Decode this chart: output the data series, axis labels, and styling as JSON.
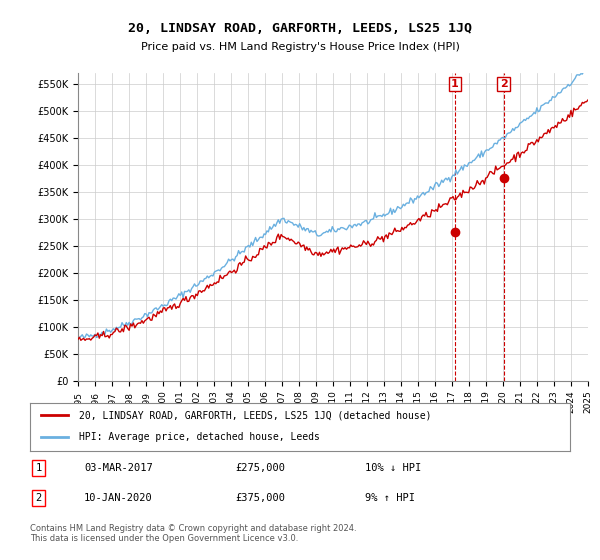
{
  "title": "20, LINDSAY ROAD, GARFORTH, LEEDS, LS25 1JQ",
  "subtitle": "Price paid vs. HM Land Registry's House Price Index (HPI)",
  "hpi_color": "#6ab0e0",
  "price_color": "#cc0000",
  "marker1_color": "#cc0000",
  "marker2_color": "#cc0000",
  "dashed_line_color": "#cc0000",
  "background_color": "#ffffff",
  "grid_color": "#cccccc",
  "ylim": [
    0,
    570000
  ],
  "yticks": [
    0,
    50000,
    100000,
    150000,
    200000,
    250000,
    300000,
    350000,
    400000,
    450000,
    500000,
    550000
  ],
  "ytick_labels": [
    "£0",
    "£50K",
    "£100K",
    "£150K",
    "£200K",
    "£250K",
    "£300K",
    "£350K",
    "£400K",
    "£450K",
    "£500K",
    "£550K"
  ],
  "legend_label_price": "20, LINDSAY ROAD, GARFORTH, LEEDS, LS25 1JQ (detached house)",
  "legend_label_hpi": "HPI: Average price, detached house, Leeds",
  "footer": "Contains HM Land Registry data © Crown copyright and database right 2024.\nThis data is licensed under the Open Government Licence v3.0.",
  "transaction1_date": "03-MAR-2017",
  "transaction1_price": "£275,000",
  "transaction1_rel": "10% ↓ HPI",
  "transaction2_date": "10-JAN-2020",
  "transaction2_price": "£375,000",
  "transaction2_rel": "9% ↑ HPI",
  "marker1_x": 2017.17,
  "marker1_y": 275000,
  "marker2_x": 2020.03,
  "marker2_y": 375000,
  "x_start": 1995,
  "x_end": 2025,
  "xtick_years": [
    1995,
    1996,
    1997,
    1998,
    1999,
    2000,
    2001,
    2002,
    2003,
    2004,
    2005,
    2006,
    2007,
    2008,
    2009,
    2010,
    2011,
    2012,
    2013,
    2014,
    2015,
    2016,
    2017,
    2018,
    2019,
    2020,
    2021,
    2022,
    2023,
    2024,
    2025
  ]
}
